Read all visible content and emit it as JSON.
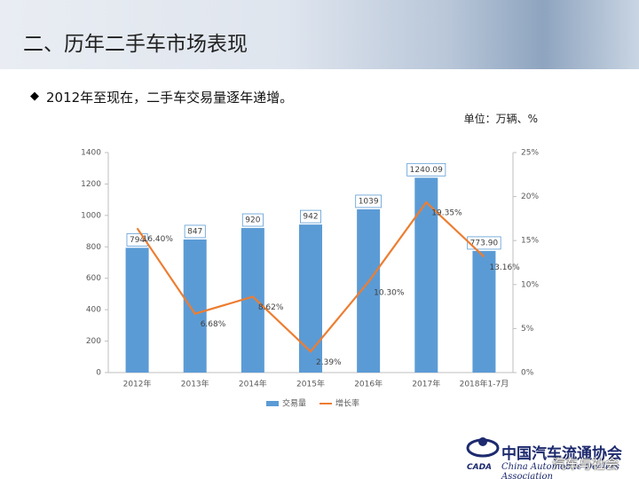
{
  "header": {
    "title": "二、历年二手车市场表现"
  },
  "bullet": "2012年至现在，二手车交易量逐年递增。",
  "unit": "单位：万辆、%",
  "chart_data": {
    "type": "bar",
    "categories": [
      "2012年",
      "2013年",
      "2014年",
      "2015年",
      "2016年",
      "2017年",
      "2018年1-7月"
    ],
    "series": [
      {
        "name": "交易量",
        "type": "bar",
        "color": "#5b9bd5",
        "values": [
          794,
          847,
          920,
          942,
          1039,
          1240.09,
          773.9
        ],
        "value_labels": [
          "794",
          "847",
          "920",
          "942",
          "1039",
          "1240.09",
          "773.90"
        ]
      },
      {
        "name": "增长率",
        "type": "line",
        "axis": "y2",
        "color": "#ed7d31",
        "values": [
          16.4,
          6.68,
          8.62,
          2.39,
          10.3,
          19.35,
          13.16
        ],
        "value_labels": [
          "16.40%",
          "6.68%",
          "8.62%",
          "2.39%",
          "10.30%",
          "19.35%",
          "13.16%"
        ]
      }
    ],
    "ylim": [
      0,
      1400
    ],
    "yticks": [
      0,
      200,
      400,
      600,
      800,
      1000,
      1200,
      1400
    ],
    "y2lim": [
      0,
      25
    ],
    "y2ticks": [
      {
        "value": 0,
        "label": "0%"
      },
      {
        "value": 5,
        "label": "5%"
      },
      {
        "value": 10,
        "label": "10%"
      },
      {
        "value": 15,
        "label": "15%"
      },
      {
        "value": 20,
        "label": "20%"
      },
      {
        "value": 25,
        "label": "25%"
      }
    ],
    "legend": "bottom"
  },
  "logo": {
    "name": "中国汽车流通协会",
    "english": "China Automobile Dealers Association",
    "abbr": "CADA"
  },
  "watermark": "汽车与社会"
}
